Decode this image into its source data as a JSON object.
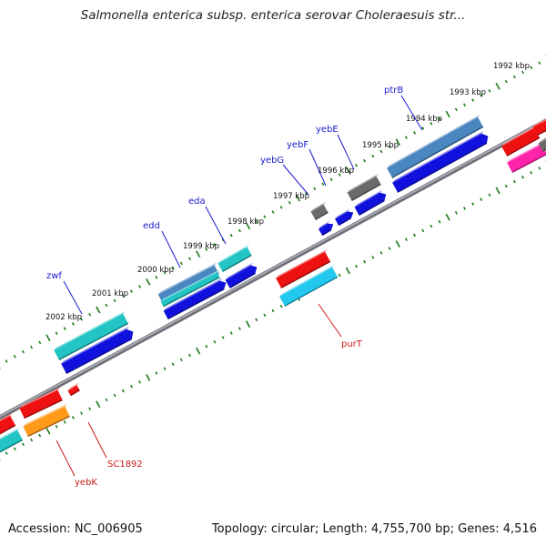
{
  "title": "Salmonella enterica subsp. enterica serovar Choleraesuis str...",
  "footer": {
    "accession": "Accession: NC_006905",
    "stats": "Topology: circular; Length: 4,755,700 bp; Genes: 4,516"
  },
  "colors": {
    "backbone": "#8e8e96",
    "tick": "#1a7a1a",
    "plus_label": "#1a1acc",
    "minus_label": "#cc1a1a",
    "red": "#ee1111",
    "blue": "#1111dd",
    "teal": "#22c4c4",
    "steelblue": "#4a86c0",
    "gray": "#6a6a6a",
    "cyan": "#22c8ee",
    "orange": "#ff9a1a",
    "pink": "#ff22aa"
  },
  "scale": {
    "kbp_labels": [
      {
        "text": "1992 kbp",
        "kbp": 1992
      },
      {
        "text": "1993 kbp",
        "kbp": 1993
      },
      {
        "text": "1994 kbp",
        "kbp": 1994
      },
      {
        "text": "1995 kbp",
        "kbp": 1995
      },
      {
        "text": "1996 kbp",
        "kbp": 1996
      },
      {
        "text": "1997 kbp",
        "kbp": 1997
      },
      {
        "text": "1998 kbp",
        "kbp": 1998
      },
      {
        "text": "1999 kbp",
        "kbp": 1999
      },
      {
        "text": "2000 kbp",
        "kbp": 2000
      },
      {
        "text": "2001 kbp",
        "kbp": 2001
      },
      {
        "text": "2002 kbp",
        "kbp": 2002
      }
    ]
  },
  "gene_labels": [
    {
      "text": "ptrB",
      "strand": "plus"
    },
    {
      "text": "yebE",
      "strand": "plus"
    },
    {
      "text": "yebF",
      "strand": "plus"
    },
    {
      "text": "yebG",
      "strand": "plus"
    },
    {
      "text": "eda",
      "strand": "plus"
    },
    {
      "text": "edd",
      "strand": "plus"
    },
    {
      "text": "zwf",
      "strand": "plus"
    },
    {
      "text": "purT",
      "strand": "minus"
    },
    {
      "text": "SC1892",
      "strand": "minus"
    },
    {
      "text": "yebK",
      "strand": "minus"
    }
  ]
}
